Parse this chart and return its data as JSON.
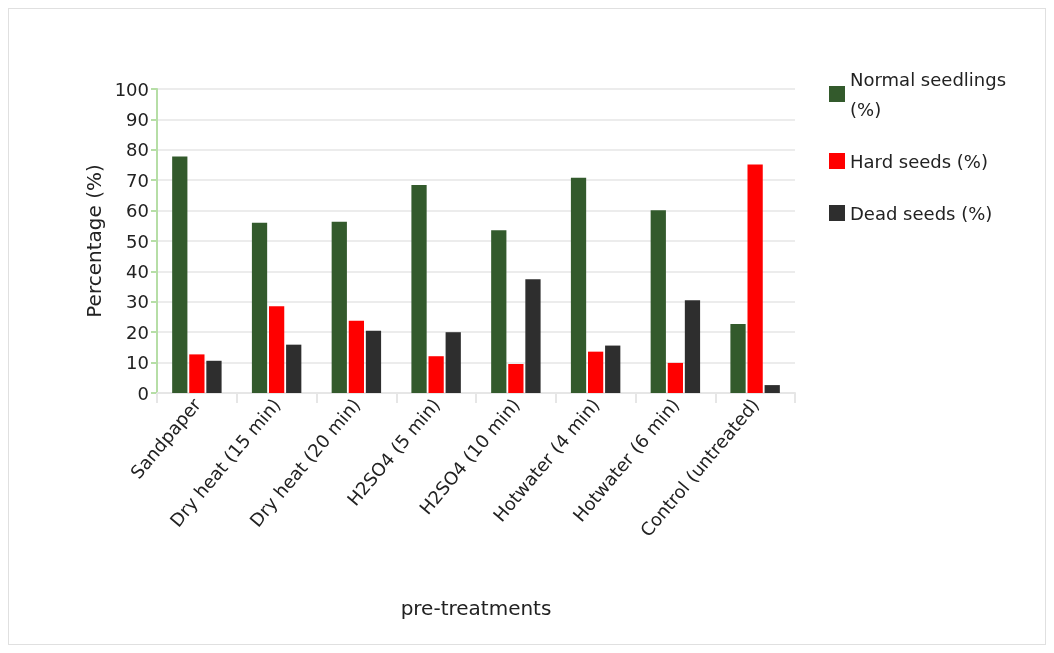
{
  "chart_data": {
    "type": "bar",
    "xlabel": "pre-treatments",
    "ylabel": "Percentage (%)",
    "categories": [
      "Sandpaper",
      "Dry heat (15 min)",
      "Dry heat (20 min)",
      "H2SO4 (5 min)",
      "H2SO4 (10 min)",
      "Hotwater (4 min)",
      "Hotwater (6 min)",
      "Control (untreated)"
    ],
    "series": [
      {
        "name": "Normal seedlings (%)",
        "color": "#335a2c",
        "values": [
          77.8,
          56.0,
          56.3,
          68.4,
          53.5,
          70.8,
          60.1,
          22.7
        ]
      },
      {
        "name": "Hard seeds (%)",
        "color": "#ff0000",
        "values": [
          12.7,
          28.5,
          23.8,
          12.1,
          9.5,
          13.6,
          9.9,
          75.2
        ]
      },
      {
        "name": "Dead seeds (%)",
        "color": "#2e2e2e",
        "values": [
          10.6,
          15.9,
          20.5,
          20.0,
          37.4,
          15.6,
          30.5,
          2.6
        ]
      }
    ],
    "ylim": [
      0,
      100
    ],
    "yticks": [
      0,
      10,
      20,
      30,
      40,
      50,
      60,
      70,
      80,
      90,
      100
    ],
    "grid": "y",
    "legend": "right"
  }
}
